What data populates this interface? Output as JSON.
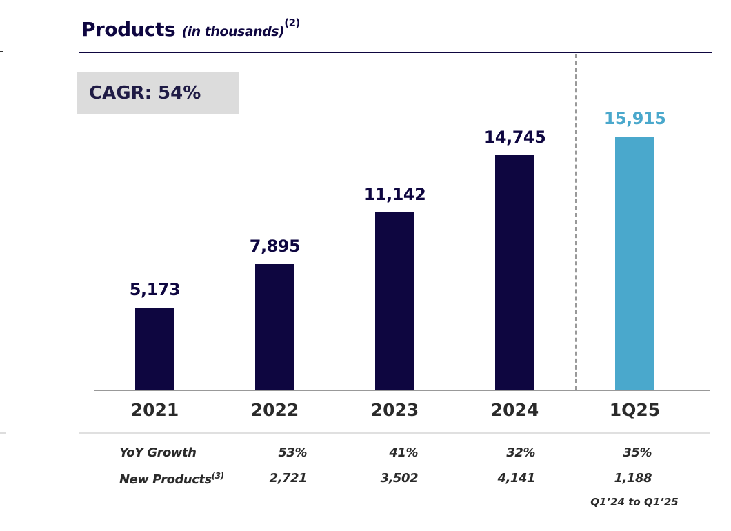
{
  "title": {
    "main": "Products",
    "sub": "(in thousands)",
    "footnote": "(2)"
  },
  "cagr": "CAGR: 54%",
  "colors": {
    "navy": "#0e0640",
    "light_blue": "#4aa8cc"
  },
  "chart_data": {
    "type": "bar",
    "title": "Products (in thousands)",
    "categories": [
      "2021",
      "2022",
      "2023",
      "2024",
      "1Q25"
    ],
    "values": [
      5173,
      7895,
      11142,
      14745,
      15915
    ],
    "labels": [
      "5,173",
      "7,895",
      "11,142",
      "14,745",
      "15,915"
    ],
    "bar_colors": [
      "#0e0640",
      "#0e0640",
      "#0e0640",
      "#0e0640",
      "#4aa8cc"
    ],
    "ylim": [
      0,
      16000
    ],
    "xlabel": "",
    "ylabel": "",
    "grid": false
  },
  "table": {
    "rows": [
      {
        "label": "YoY Growth",
        "footnote": "",
        "values": [
          "53%",
          "41%",
          "32%",
          "35%"
        ]
      },
      {
        "label": "New Products",
        "footnote": "(3)",
        "values": [
          "2,721",
          "3,502",
          "4,141",
          "1,188"
        ]
      }
    ],
    "note": "Q1’24 to Q1’25"
  }
}
